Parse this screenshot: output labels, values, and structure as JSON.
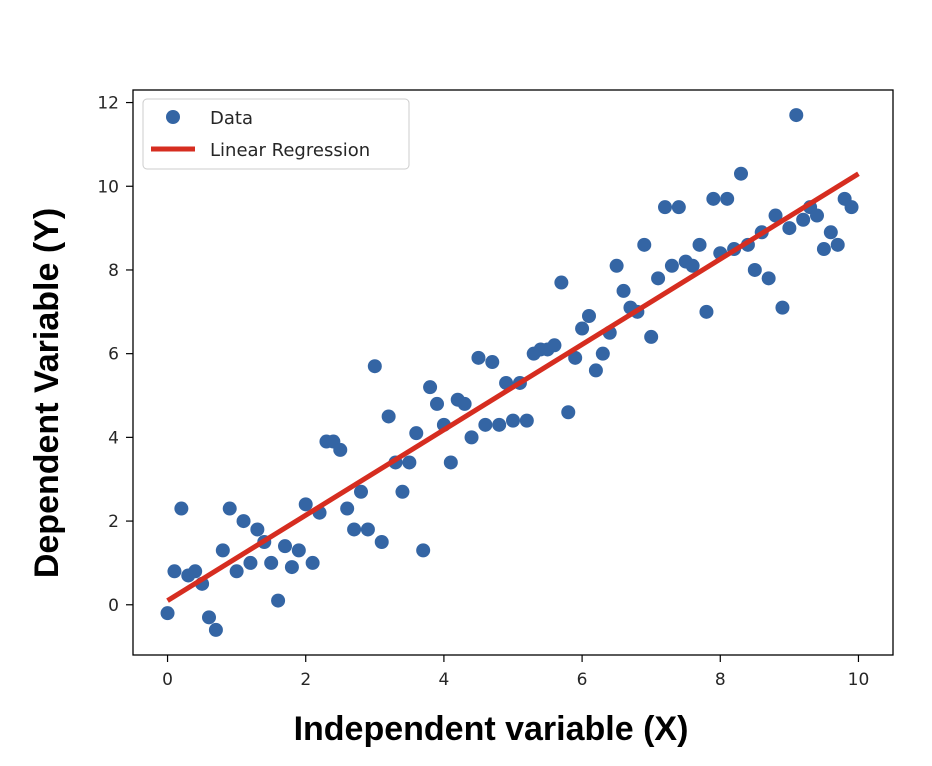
{
  "chart_data": {
    "type": "scatter",
    "title": "",
    "xlabel": "Independent variable (X)",
    "ylabel": "Dependent Variable (Y)",
    "xlim": [
      -0.5,
      10.5
    ],
    "ylim": [
      -1.2,
      12.3
    ],
    "xticks": [
      "0",
      "2",
      "4",
      "6",
      "8",
      "10"
    ],
    "yticks": [
      "0",
      "2",
      "4",
      "6",
      "8",
      "10",
      "12"
    ],
    "grid": false,
    "legend_position": "top-left",
    "series": [
      {
        "name": "Data",
        "kind": "scatter",
        "color": "#3465a4",
        "points": [
          [
            0.0,
            -0.2
          ],
          [
            0.1,
            0.8
          ],
          [
            0.2,
            2.3
          ],
          [
            0.3,
            0.7
          ],
          [
            0.4,
            0.8
          ],
          [
            0.5,
            0.5
          ],
          [
            0.6,
            -0.3
          ],
          [
            0.7,
            -0.6
          ],
          [
            0.8,
            1.3
          ],
          [
            0.9,
            2.3
          ],
          [
            1.0,
            0.8
          ],
          [
            1.1,
            2.0
          ],
          [
            1.2,
            1.0
          ],
          [
            1.3,
            1.8
          ],
          [
            1.4,
            1.5
          ],
          [
            1.5,
            1.0
          ],
          [
            1.6,
            0.1
          ],
          [
            1.7,
            1.4
          ],
          [
            1.8,
            0.9
          ],
          [
            1.9,
            1.3
          ],
          [
            2.0,
            2.4
          ],
          [
            2.1,
            1.0
          ],
          [
            2.2,
            2.2
          ],
          [
            2.3,
            3.9
          ],
          [
            2.4,
            3.9
          ],
          [
            2.5,
            3.7
          ],
          [
            2.6,
            2.3
          ],
          [
            2.7,
            1.8
          ],
          [
            2.8,
            2.7
          ],
          [
            2.9,
            1.8
          ],
          [
            3.0,
            5.7
          ],
          [
            3.1,
            1.5
          ],
          [
            3.2,
            4.5
          ],
          [
            3.3,
            3.4
          ],
          [
            3.4,
            2.7
          ],
          [
            3.5,
            3.4
          ],
          [
            3.6,
            4.1
          ],
          [
            3.7,
            1.3
          ],
          [
            3.8,
            5.2
          ],
          [
            3.9,
            4.8
          ],
          [
            4.0,
            4.3
          ],
          [
            4.1,
            3.4
          ],
          [
            4.2,
            4.9
          ],
          [
            4.3,
            4.8
          ],
          [
            4.4,
            4.0
          ],
          [
            4.5,
            5.9
          ],
          [
            4.6,
            4.3
          ],
          [
            4.7,
            5.8
          ],
          [
            4.8,
            4.3
          ],
          [
            4.9,
            5.3
          ],
          [
            5.0,
            4.4
          ],
          [
            5.1,
            5.3
          ],
          [
            5.2,
            4.4
          ],
          [
            5.3,
            6.0
          ],
          [
            5.4,
            6.1
          ],
          [
            5.5,
            6.1
          ],
          [
            5.6,
            6.2
          ],
          [
            5.7,
            7.7
          ],
          [
            5.8,
            4.6
          ],
          [
            5.9,
            5.9
          ],
          [
            6.0,
            6.6
          ],
          [
            6.1,
            6.9
          ],
          [
            6.2,
            5.6
          ],
          [
            6.3,
            6.0
          ],
          [
            6.4,
            6.5
          ],
          [
            6.5,
            8.1
          ],
          [
            6.6,
            7.5
          ],
          [
            6.7,
            7.1
          ],
          [
            6.8,
            7.0
          ],
          [
            6.9,
            8.6
          ],
          [
            7.0,
            6.4
          ],
          [
            7.1,
            7.8
          ],
          [
            7.2,
            9.5
          ],
          [
            7.3,
            8.1
          ],
          [
            7.4,
            9.5
          ],
          [
            7.5,
            8.2
          ],
          [
            7.6,
            8.1
          ],
          [
            7.7,
            8.6
          ],
          [
            7.8,
            7.0
          ],
          [
            7.9,
            9.7
          ],
          [
            8.0,
            8.4
          ],
          [
            8.1,
            9.7
          ],
          [
            8.2,
            8.5
          ],
          [
            8.3,
            10.3
          ],
          [
            8.4,
            8.6
          ],
          [
            8.5,
            8.0
          ],
          [
            8.6,
            8.9
          ],
          [
            8.7,
            7.8
          ],
          [
            8.8,
            9.3
          ],
          [
            8.9,
            7.1
          ],
          [
            9.0,
            9.0
          ],
          [
            9.1,
            11.7
          ],
          [
            9.2,
            9.2
          ],
          [
            9.3,
            9.5
          ],
          [
            9.4,
            9.3
          ],
          [
            9.5,
            8.5
          ],
          [
            9.6,
            8.9
          ],
          [
            9.7,
            8.6
          ],
          [
            9.8,
            9.7
          ],
          [
            9.9,
            9.5
          ]
        ]
      },
      {
        "name": "Linear Regression",
        "kind": "line",
        "color": "#d62d20",
        "points": [
          [
            0.0,
            0.1
          ],
          [
            10.0,
            10.3
          ]
        ]
      }
    ]
  }
}
